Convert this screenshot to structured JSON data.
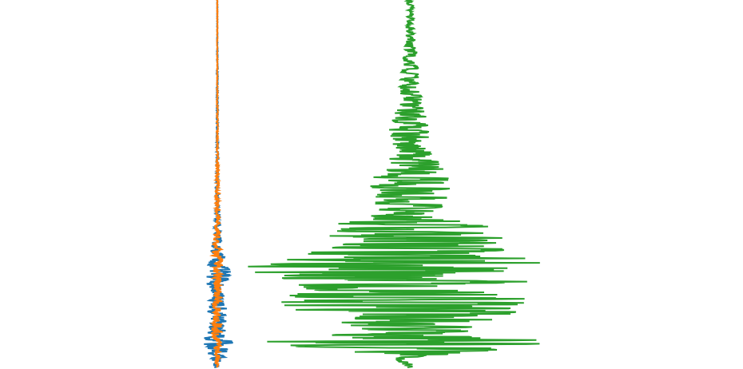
{
  "figure": {
    "background": "#ffffff"
  },
  "chart_data": [
    {
      "type": "line",
      "orientation": "vertical-trace",
      "title": "",
      "xlabel": "",
      "ylabel": "",
      "grid": false,
      "legend": "none",
      "axes_visible": false,
      "t_range": [
        0,
        1
      ],
      "amplitude_range": [
        -1,
        1
      ],
      "series": [
        {
          "color": "#1f77b4",
          "envelope": [
            [
              0.0,
              0.01
            ],
            [
              0.1,
              0.01
            ],
            [
              0.2,
              0.02
            ],
            [
              0.3,
              0.02
            ],
            [
              0.4,
              0.03
            ],
            [
              0.5,
              0.04
            ],
            [
              0.56,
              0.05
            ],
            [
              0.6,
              0.08
            ],
            [
              0.64,
              0.12
            ],
            [
              0.68,
              0.2
            ],
            [
              0.72,
              0.28
            ],
            [
              0.74,
              0.42
            ],
            [
              0.76,
              0.35
            ],
            [
              0.8,
              0.22
            ],
            [
              0.84,
              0.3
            ],
            [
              0.88,
              0.32
            ],
            [
              0.9,
              0.26
            ],
            [
              0.93,
              0.48
            ],
            [
              0.95,
              0.4
            ],
            [
              0.98,
              0.18
            ],
            [
              1.0,
              0.1
            ]
          ]
        },
        {
          "color": "#ff7f0e",
          "envelope": [
            [
              0.0,
              0.01
            ],
            [
              0.1,
              0.01
            ],
            [
              0.2,
              0.01
            ],
            [
              0.3,
              0.02
            ],
            [
              0.4,
              0.02
            ],
            [
              0.5,
              0.05
            ],
            [
              0.55,
              0.06
            ],
            [
              0.6,
              0.06
            ],
            [
              0.65,
              0.1
            ],
            [
              0.7,
              0.16
            ],
            [
              0.74,
              0.14
            ],
            [
              0.78,
              0.12
            ],
            [
              0.82,
              0.15
            ],
            [
              0.86,
              0.13
            ],
            [
              0.9,
              0.18
            ],
            [
              0.94,
              0.12
            ],
            [
              1.0,
              0.05
            ]
          ]
        }
      ]
    },
    {
      "type": "line",
      "orientation": "vertical-trace",
      "title": "",
      "xlabel": "",
      "ylabel": "",
      "grid": false,
      "legend": "none",
      "axes_visible": false,
      "t_range": [
        0,
        1
      ],
      "amplitude_range": [
        -1,
        1
      ],
      "series": [
        {
          "color": "#2ca02c",
          "envelope": [
            [
              0.0,
              0.02
            ],
            [
              0.05,
              0.02
            ],
            [
              0.1,
              0.03
            ],
            [
              0.15,
              0.04
            ],
            [
              0.2,
              0.05
            ],
            [
              0.25,
              0.06
            ],
            [
              0.3,
              0.08
            ],
            [
              0.35,
              0.12
            ],
            [
              0.4,
              0.1
            ],
            [
              0.45,
              0.18
            ],
            [
              0.5,
              0.24
            ],
            [
              0.55,
              0.2
            ],
            [
              0.58,
              0.16
            ],
            [
              0.61,
              0.42
            ],
            [
              0.64,
              0.55
            ],
            [
              0.67,
              0.5
            ],
            [
              0.7,
              0.62
            ],
            [
              0.73,
              1.0
            ],
            [
              0.76,
              0.7
            ],
            [
              0.79,
              0.58
            ],
            [
              0.82,
              0.85
            ],
            [
              0.85,
              0.6
            ],
            [
              0.88,
              0.45
            ],
            [
              0.91,
              0.4
            ],
            [
              0.93,
              0.82
            ],
            [
              0.95,
              0.55
            ],
            [
              0.97,
              0.1
            ],
            [
              1.0,
              0.02
            ]
          ]
        }
      ]
    }
  ]
}
